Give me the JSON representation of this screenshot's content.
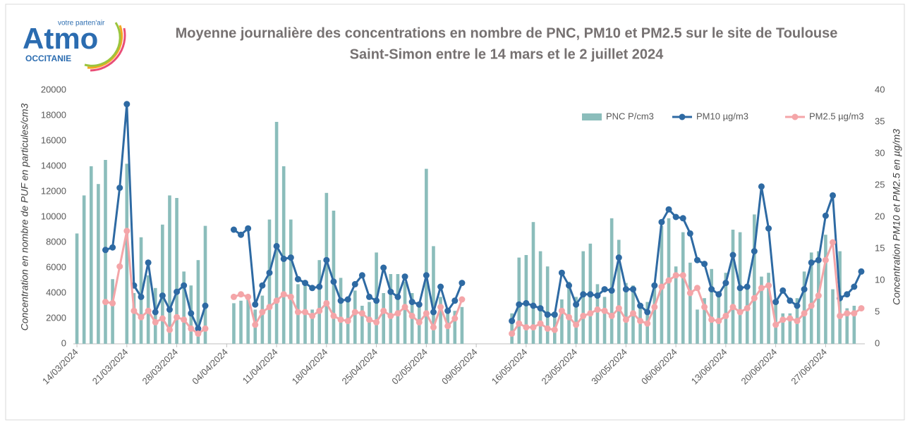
{
  "logo": {
    "name": "Atmo",
    "tagline": "votre parten'air",
    "region": "OCCITANIE"
  },
  "chart_data": {
    "type": "combo",
    "title": [
      "Moyenne journalière des concentrations en nombre de PNC, PM10 et PM2.5 sur le site de Toulouse",
      "Saint-Simon entre le 14 mars et le 2 juillet 2024"
    ],
    "y_label": "Concentration en nombre de PUF en particules/cm3",
    "y2_label": "Concentration PM10 et PM2.5 en µg/m3",
    "categories": [
      "14/03/2024",
      null,
      null,
      null,
      null,
      null,
      null,
      "21/03/2024",
      null,
      null,
      null,
      null,
      null,
      null,
      "28/03/2024",
      null,
      null,
      null,
      null,
      null,
      null,
      "04/04/2024",
      null,
      null,
      null,
      null,
      null,
      null,
      "11/04/2024",
      null,
      null,
      null,
      null,
      null,
      null,
      "18/04/2024",
      null,
      null,
      null,
      null,
      null,
      null,
      "25/04/2024",
      null,
      null,
      null,
      null,
      null,
      null,
      "02/05/2024",
      null,
      null,
      null,
      null,
      null,
      null,
      "09/05/2024",
      null,
      null,
      null,
      null,
      null,
      null,
      "16/05/2024",
      null,
      null,
      null,
      null,
      null,
      null,
      "23/05/2024",
      null,
      null,
      null,
      null,
      null,
      null,
      "30/05/2024",
      null,
      null,
      null,
      null,
      null,
      null,
      "06/06/2024",
      null,
      null,
      null,
      null,
      null,
      null,
      "13/06/2024",
      null,
      null,
      null,
      null,
      null,
      null,
      "20/06/2024",
      null,
      null,
      null,
      null,
      null,
      null,
      "27/06/2024",
      null,
      null,
      null,
      null,
      null
    ],
    "series": [
      {
        "name": "PNC P/cm3",
        "type": "bar",
        "color": "#8bbdbb",
        "values": [
          8700,
          11700,
          14000,
          12600,
          14500,
          5100,
          null,
          14200,
          4000,
          8400,
          5400,
          4400,
          9400,
          11700,
          11500,
          5700,
          4600,
          6600,
          9300,
          null,
          null,
          null,
          3200,
          3400,
          3800,
          2700,
          3800,
          9800,
          17500,
          14000,
          9800,
          4700,
          4600,
          2700,
          6600,
          11900,
          10500,
          5200,
          3500,
          4200,
          3000,
          3300,
          7200,
          4000,
          5500,
          5500,
          4900,
          4000,
          3200,
          13800,
          7700,
          3700,
          2400,
          2600,
          2900,
          null,
          null,
          null,
          null,
          null,
          null,
          2400,
          6800,
          7000,
          9600,
          7300,
          6100,
          2500,
          3500,
          4900,
          3700,
          7300,
          7900,
          4700,
          3700,
          9900,
          8200,
          4800,
          4600,
          3100,
          3300,
          4600,
          9300,
          9900,
          6100,
          8800,
          6400,
          2700,
          3600,
          5900,
          3700,
          5600,
          9000,
          8800,
          4600,
          10200,
          5300,
          5600,
          3300,
          2400,
          2400,
          3600,
          5700,
          7200,
          7300,
          8600,
          4300,
          7300,
          2800,
          3000,
          null
        ]
      },
      {
        "name": "PM10 µg/m3",
        "type": "line",
        "axis": "y2",
        "color": "#2e6aa3",
        "values": [
          null,
          null,
          null,
          null,
          14.8,
          15.2,
          24.6,
          37.8,
          9.2,
          7.4,
          12.8,
          5.0,
          7.6,
          5.4,
          8.2,
          9.2,
          4.8,
          2.4,
          6.0,
          null,
          null,
          null,
          18.0,
          17.2,
          18.2,
          6.2,
          9.2,
          11.2,
          15.4,
          13.4,
          13.6,
          10.2,
          9.6,
          8.8,
          9.0,
          13.2,
          9.8,
          6.8,
          7.0,
          9.4,
          10.8,
          7.4,
          6.8,
          12.0,
          8.2,
          7.4,
          10.6,
          6.6,
          6.2,
          10.8,
          5.0,
          9.0,
          5.2,
          6.8,
          9.6,
          null,
          null,
          null,
          null,
          null,
          null,
          3.6,
          6.2,
          6.4,
          6.0,
          5.6,
          4.6,
          4.6,
          11.2,
          9.2,
          6.2,
          7.8,
          7.8,
          7.6,
          8.6,
          8.4,
          13.6,
          8.6,
          8.6,
          6.0,
          5.0,
          9.2,
          19.2,
          21.2,
          20.0,
          19.8,
          17.4,
          13.2,
          12.6,
          8.6,
          7.8,
          9.6,
          14.0,
          8.8,
          9.0,
          14.6,
          24.8,
          18.2,
          6.6,
          8.4,
          6.8,
          6.0,
          8.6,
          12.8,
          13.2,
          20.2,
          23.4,
          7.2,
          7.8,
          9.0,
          11.4
        ]
      },
      {
        "name": "PM2.5 µg/m3",
        "type": "line",
        "axis": "y2",
        "color": "#f4a5a8",
        "values": [
          null,
          null,
          null,
          null,
          6.6,
          6.4,
          12.2,
          17.8,
          5.2,
          4.2,
          5.2,
          3.4,
          4.0,
          2.2,
          4.2,
          3.8,
          2.4,
          1.6,
          2.4,
          null,
          null,
          null,
          7.4,
          7.8,
          7.4,
          3.0,
          5.0,
          5.8,
          6.8,
          7.8,
          7.4,
          5.0,
          5.0,
          4.4,
          5.2,
          6.4,
          4.4,
          3.8,
          3.6,
          5.0,
          4.8,
          3.8,
          3.4,
          5.2,
          4.4,
          4.8,
          5.8,
          4.4,
          3.4,
          4.8,
          2.6,
          5.8,
          2.8,
          4.0,
          7.0,
          null,
          null,
          null,
          null,
          null,
          null,
          1.6,
          3.2,
          2.6,
          2.6,
          3.2,
          2.4,
          2.2,
          5.2,
          4.2,
          3.0,
          4.4,
          4.8,
          5.4,
          5.2,
          4.4,
          5.6,
          3.8,
          4.8,
          3.6,
          3.2,
          5.8,
          9.0,
          10.0,
          10.8,
          10.8,
          8.0,
          8.8,
          5.8,
          3.8,
          3.6,
          4.4,
          5.8,
          5.0,
          5.6,
          7.2,
          8.8,
          9.2,
          3.0,
          3.8,
          4.0,
          3.6,
          4.8,
          6.0,
          7.6,
          13.2,
          16.0,
          4.4,
          4.8,
          4.8,
          5.6
        ]
      }
    ],
    "ylim": [
      0,
      20000
    ],
    "yticks": [
      0,
      2000,
      4000,
      6000,
      8000,
      10000,
      12000,
      14000,
      16000,
      18000,
      20000
    ],
    "y2lim": [
      0,
      40
    ],
    "y2ticks": [
      0,
      5,
      10,
      15,
      20,
      25,
      30,
      35,
      40
    ],
    "legend": "top-right",
    "grid": false
  }
}
